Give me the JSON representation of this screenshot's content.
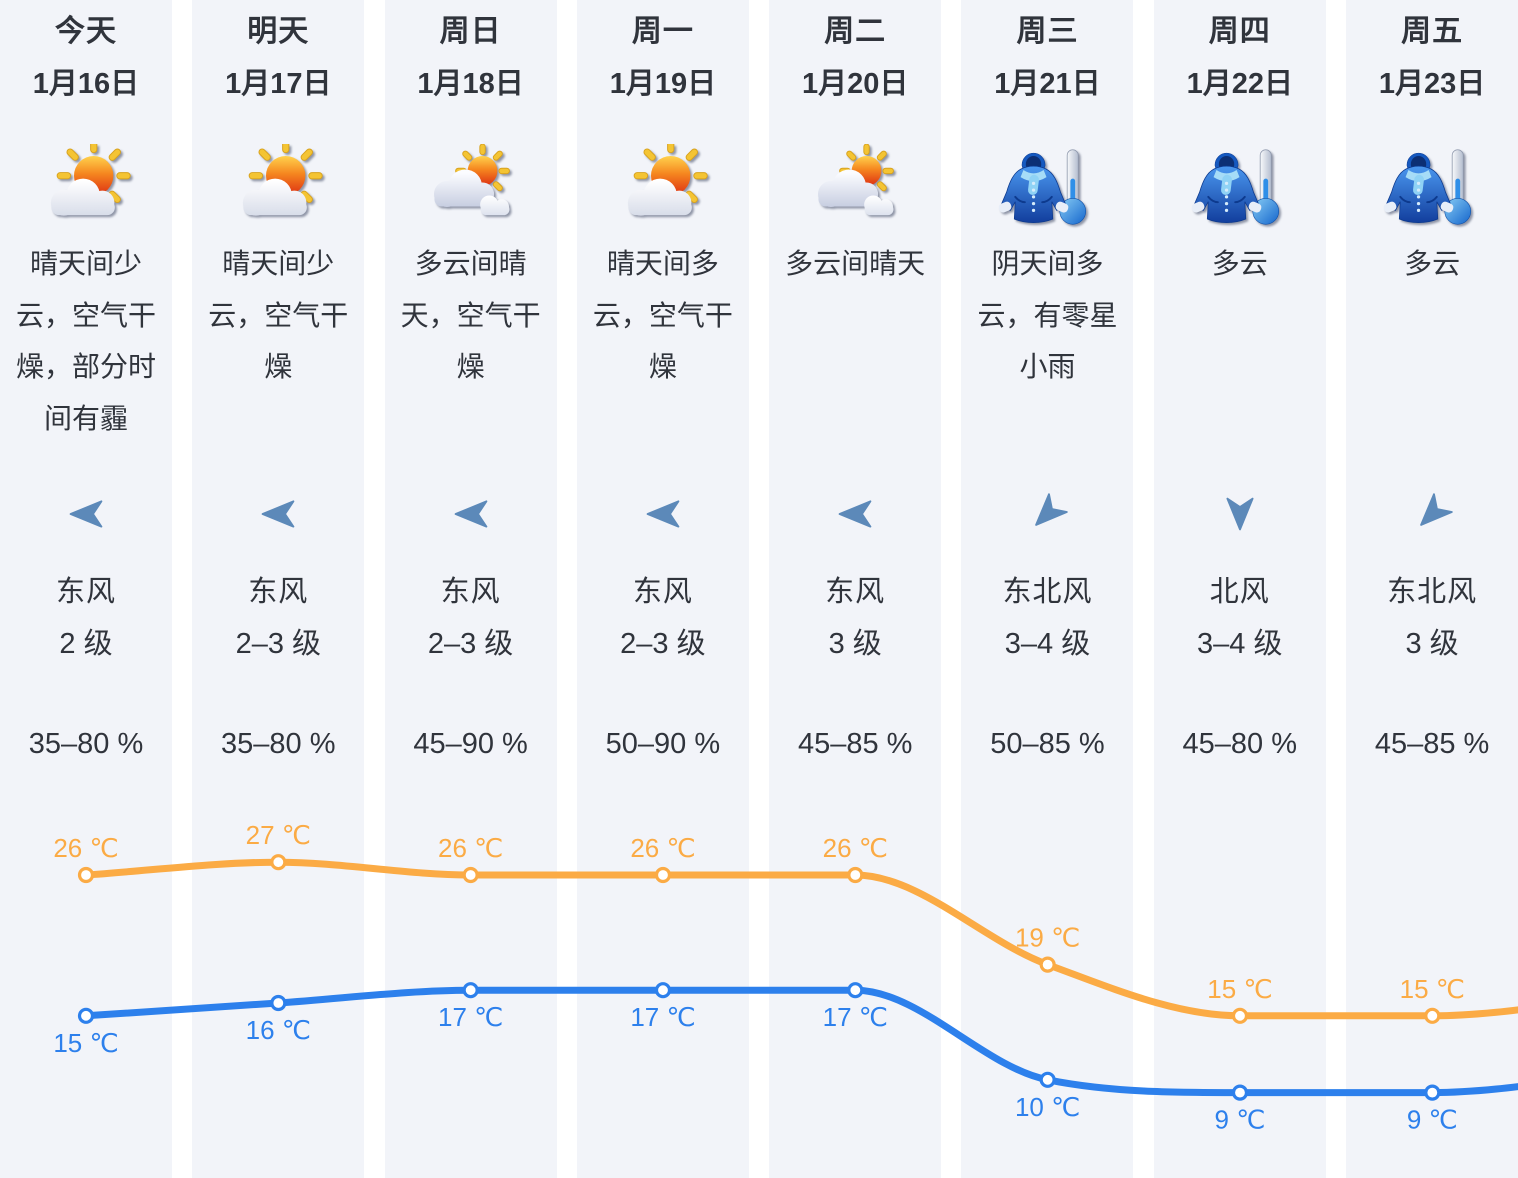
{
  "page": {
    "background": "#ffffff",
    "column_background": "#f2f4f9"
  },
  "colors": {
    "text": "#30343c",
    "high_line": "#fbab45",
    "low_line": "#2d80ec",
    "wind_arrow": "#5c89b9"
  },
  "days": [
    {
      "day": "今天",
      "date": "1月16日",
      "icon": "sun-small-cloud",
      "condition": "晴天间少云，空气干燥，部分时间有霾",
      "wind_direction": "东风",
      "wind_level": "2 级",
      "wind_arrow_deg": 0,
      "humidity": "35–80 %"
    },
    {
      "day": "明天",
      "date": "1月17日",
      "icon": "sun-small-cloud",
      "condition": "晴天间少云，空气干燥",
      "wind_direction": "东风",
      "wind_level": "2–3 级",
      "wind_arrow_deg": 0,
      "humidity": "35–80 %"
    },
    {
      "day": "周日",
      "date": "1月18日",
      "icon": "cloud-sun",
      "condition": "多云间晴天，空气干燥",
      "wind_direction": "东风",
      "wind_level": "2–3 级",
      "wind_arrow_deg": 0,
      "humidity": "45–90 %"
    },
    {
      "day": "周一",
      "date": "1月19日",
      "icon": "sun-small-cloud",
      "condition": "晴天间多云，空气干燥",
      "wind_direction": "东风",
      "wind_level": "2–3 级",
      "wind_arrow_deg": 0,
      "humidity": "50–90 %"
    },
    {
      "day": "周二",
      "date": "1月20日",
      "icon": "cloud-sun",
      "condition": "多云间晴天",
      "wind_direction": "东风",
      "wind_level": "3 级",
      "wind_arrow_deg": 0,
      "humidity": "45–85 %"
    },
    {
      "day": "周三",
      "date": "1月21日",
      "icon": "cold",
      "condition": "阴天间多云，有零星小雨",
      "wind_direction": "东北风",
      "wind_level": "3–4 级",
      "wind_arrow_deg": -45,
      "humidity": "50–85 %"
    },
    {
      "day": "周四",
      "date": "1月22日",
      "icon": "cold",
      "condition": "多云",
      "wind_direction": "北风",
      "wind_level": "3–4 级",
      "wind_arrow_deg": -90,
      "humidity": "45–80 %"
    },
    {
      "day": "周五",
      "date": "1月23日",
      "icon": "cold",
      "condition": "多云",
      "wind_direction": "东北风",
      "wind_level": "3 级",
      "wind_arrow_deg": -45,
      "humidity": "45–85 %"
    }
  ],
  "chart_data": {
    "type": "line",
    "categories": [
      "1月16日",
      "1月17日",
      "1月18日",
      "1月19日",
      "1月20日",
      "1月21日",
      "1月22日",
      "1月23日"
    ],
    "series": [
      {
        "name": "high_temperature",
        "color": "#fbab45",
        "values": [
          26,
          27,
          26,
          26,
          26,
          19,
          15,
          15
        ],
        "unit": "℃",
        "label_position": "above"
      },
      {
        "name": "low_temperature",
        "color": "#2d80ec",
        "values": [
          15,
          16,
          17,
          17,
          17,
          10,
          9,
          9
        ],
        "unit": "℃",
        "label_position": "below"
      }
    ],
    "label_format": "{value} ℃",
    "ylim": [
      5,
      30
    ],
    "grid": false,
    "legend": false,
    "axes_hidden": true,
    "smooth": true
  }
}
